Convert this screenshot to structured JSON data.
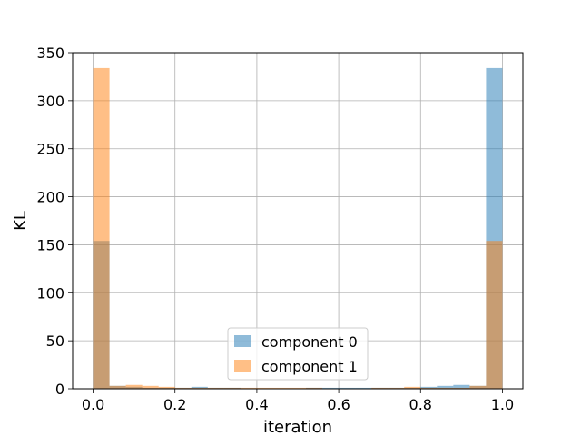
{
  "chart_data": {
    "type": "bar",
    "subtype": "overlapping-histogram",
    "xlabel": "iteration",
    "ylabel": "KL",
    "xlim": [
      -0.05,
      1.05
    ],
    "ylim": [
      0,
      350
    ],
    "xticks": [
      "0.0",
      "0.2",
      "0.4",
      "0.6",
      "0.8",
      "1.0"
    ],
    "yticks": [
      "0",
      "50",
      "100",
      "150",
      "200",
      "250",
      "300",
      "350"
    ],
    "grid": true,
    "legend_position": "lower-center",
    "bin_edges": [
      0.0,
      0.04,
      0.08,
      0.12,
      0.16,
      0.2,
      0.24,
      0.28,
      0.32,
      0.36,
      0.4,
      0.44,
      0.48,
      0.52,
      0.56,
      0.6,
      0.64,
      0.68,
      0.72,
      0.76,
      0.8,
      0.84,
      0.88,
      0.92,
      0.96,
      1.0
    ],
    "series": [
      {
        "name": "component 0",
        "color": "#1f77b4",
        "alpha": 0.5,
        "values": [
          154,
          3,
          2,
          1,
          1,
          1,
          2,
          1,
          1,
          0,
          0,
          0,
          0,
          1,
          1,
          1,
          1,
          1,
          1,
          1,
          2,
          3,
          4,
          3,
          334
        ]
      },
      {
        "name": "component 1",
        "color": "#ff7f0e",
        "alpha": 0.5,
        "values": [
          334,
          3,
          4,
          3,
          2,
          1,
          1,
          1,
          1,
          1,
          1,
          1,
          1,
          1,
          0,
          0,
          0,
          1,
          1,
          2,
          1,
          1,
          1,
          3,
          154
        ]
      }
    ]
  }
}
